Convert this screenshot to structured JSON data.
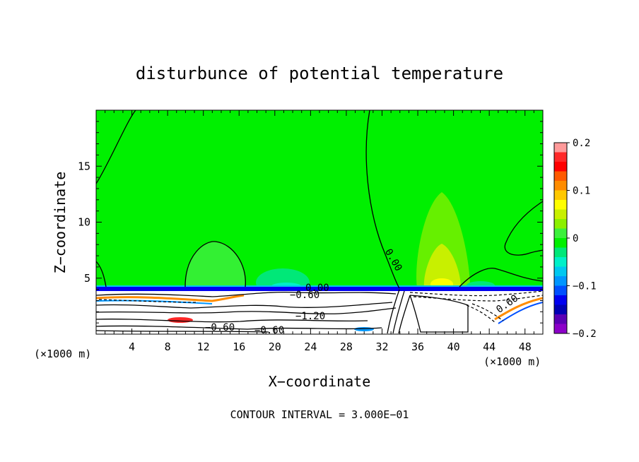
{
  "chart_data": {
    "type": "heatmap",
    "title": "disturbunce of potential temperature",
    "xlabel": "X−coordinate",
    "ylabel": "Z−coordinate",
    "x_unit": "(×1000 m)",
    "x_unit_right": "(×1000 m)",
    "xlim": [
      0,
      50
    ],
    "ylim": [
      0,
      20
    ],
    "x_ticks": [
      4,
      8,
      12,
      16,
      20,
      24,
      28,
      32,
      36,
      40,
      44,
      48
    ],
    "y_ticks": [
      5,
      10,
      15
    ],
    "colorbar": {
      "ticks": [
        0.2,
        0.1,
        0,
        -0.1,
        -0.2
      ],
      "tick_labels": [
        "0.2",
        "0.1",
        "0",
        "−0.1",
        "−0.2"
      ],
      "range": [
        -0.2,
        0.2
      ],
      "colors": [
        "#ff9a9a",
        "#ff2828",
        "#ff0000",
        "#ff5a00",
        "#ff8c00",
        "#ffc800",
        "#ffff00",
        "#c8f000",
        "#8cf000",
        "#3cf03c",
        "#00f000",
        "#00e878",
        "#00f0c8",
        "#00c8f0",
        "#0096ff",
        "#0050ff",
        "#0000f0",
        "#0000b4",
        "#5a00b4",
        "#8c00c8"
      ]
    },
    "contour_interval_text": "CONTOUR INTERVAL = 3.000E−01",
    "contour_labels": [
      "0.00",
      "0.00",
      "−0.60",
      "−1.20",
      "−0.60",
      "0.60",
      "−0.60"
    ],
    "background_value": 0.0,
    "features": [
      {
        "name": "positive-anomaly-aloft",
        "x": 38.5,
        "z": 9,
        "value": 0.05
      },
      {
        "name": "weak-positive-left",
        "x": 13.5,
        "z": 6,
        "value": 0.02
      },
      {
        "name": "weak-negative-midlevel",
        "x": 21,
        "z": 5,
        "value": -0.03
      },
      {
        "name": "stable-layer-top",
        "z": 4.2,
        "value": -0.2
      }
    ]
  }
}
